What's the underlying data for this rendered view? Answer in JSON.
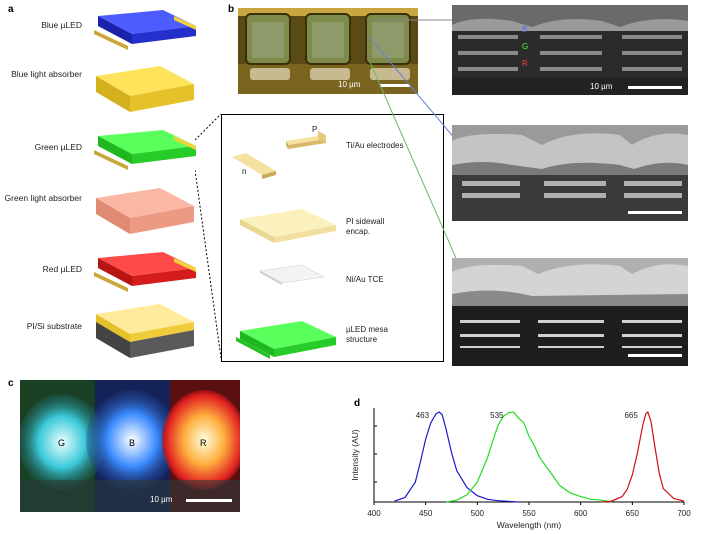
{
  "panel_a": {
    "letter": "a",
    "layers": [
      {
        "label": "Blue µLED",
        "color": "#2233ee"
      },
      {
        "label": "Blue light absorber",
        "color": "#f2d23a"
      },
      {
        "label": "Green µLED",
        "color": "#33ee33"
      },
      {
        "label": "Green light absorber",
        "color": "#f4a08a"
      },
      {
        "label": "Red µLED",
        "color": "#ee2222"
      },
      {
        "label": "PI/Si substrate",
        "color": "#f2d23a"
      }
    ]
  },
  "panel_b": {
    "letter": "b",
    "optical_scale": "10 µm",
    "sem_scale": "10 µm",
    "rgb_labels": {
      "b": "B",
      "g": "G",
      "r": "R"
    },
    "explode": {
      "p": "P",
      "n": "n",
      "electrodes": "Ti/Au electrodes",
      "sidewall": "PI sidewall encap.",
      "tce": "Ni/Au TCE",
      "mesa": "µLED mesa structure"
    }
  },
  "panel_c": {
    "letter": "c",
    "labels": {
      "g": "G",
      "b": "B",
      "r": "R"
    },
    "scale": "10 µm"
  },
  "panel_d": {
    "letter": "d",
    "chart_data": {
      "type": "line",
      "xlabel": "Wavelength (nm)",
      "ylabel": "Intensity (AU)",
      "xlim": [
        400,
        700
      ],
      "xticks": [
        400,
        450,
        500,
        550,
        600,
        650,
        700
      ],
      "series": [
        {
          "color": "#1a1acc",
          "peak_label": "463",
          "x": [
            420,
            430,
            440,
            445,
            450,
            455,
            460,
            463,
            466,
            470,
            475,
            480,
            490,
            500,
            510,
            520,
            530,
            540
          ],
          "y": [
            0.01,
            0.05,
            0.22,
            0.45,
            0.7,
            0.88,
            0.98,
            1.0,
            0.97,
            0.8,
            0.55,
            0.35,
            0.16,
            0.07,
            0.03,
            0.015,
            0.008,
            0.0
          ]
        },
        {
          "color": "#22dd22",
          "peak_label": "535",
          "x": [
            470,
            480,
            490,
            500,
            510,
            515,
            520,
            525,
            530,
            535,
            540,
            545,
            550,
            555,
            560,
            570,
            580,
            590,
            600,
            610,
            620,
            630
          ],
          "y": [
            0.0,
            0.02,
            0.08,
            0.22,
            0.5,
            0.68,
            0.85,
            0.95,
            0.99,
            1.0,
            0.93,
            0.88,
            0.73,
            0.63,
            0.5,
            0.34,
            0.18,
            0.1,
            0.06,
            0.03,
            0.02,
            0.0
          ]
        },
        {
          "color": "#cc1111",
          "peak_label": "665",
          "x": [
            620,
            630,
            640,
            645,
            650,
            655,
            660,
            663,
            665,
            668,
            672,
            676,
            680,
            690,
            700
          ],
          "y": [
            0.0,
            0.01,
            0.06,
            0.14,
            0.3,
            0.55,
            0.85,
            0.98,
            1.0,
            0.9,
            0.6,
            0.32,
            0.15,
            0.04,
            0.01
          ]
        }
      ]
    }
  }
}
